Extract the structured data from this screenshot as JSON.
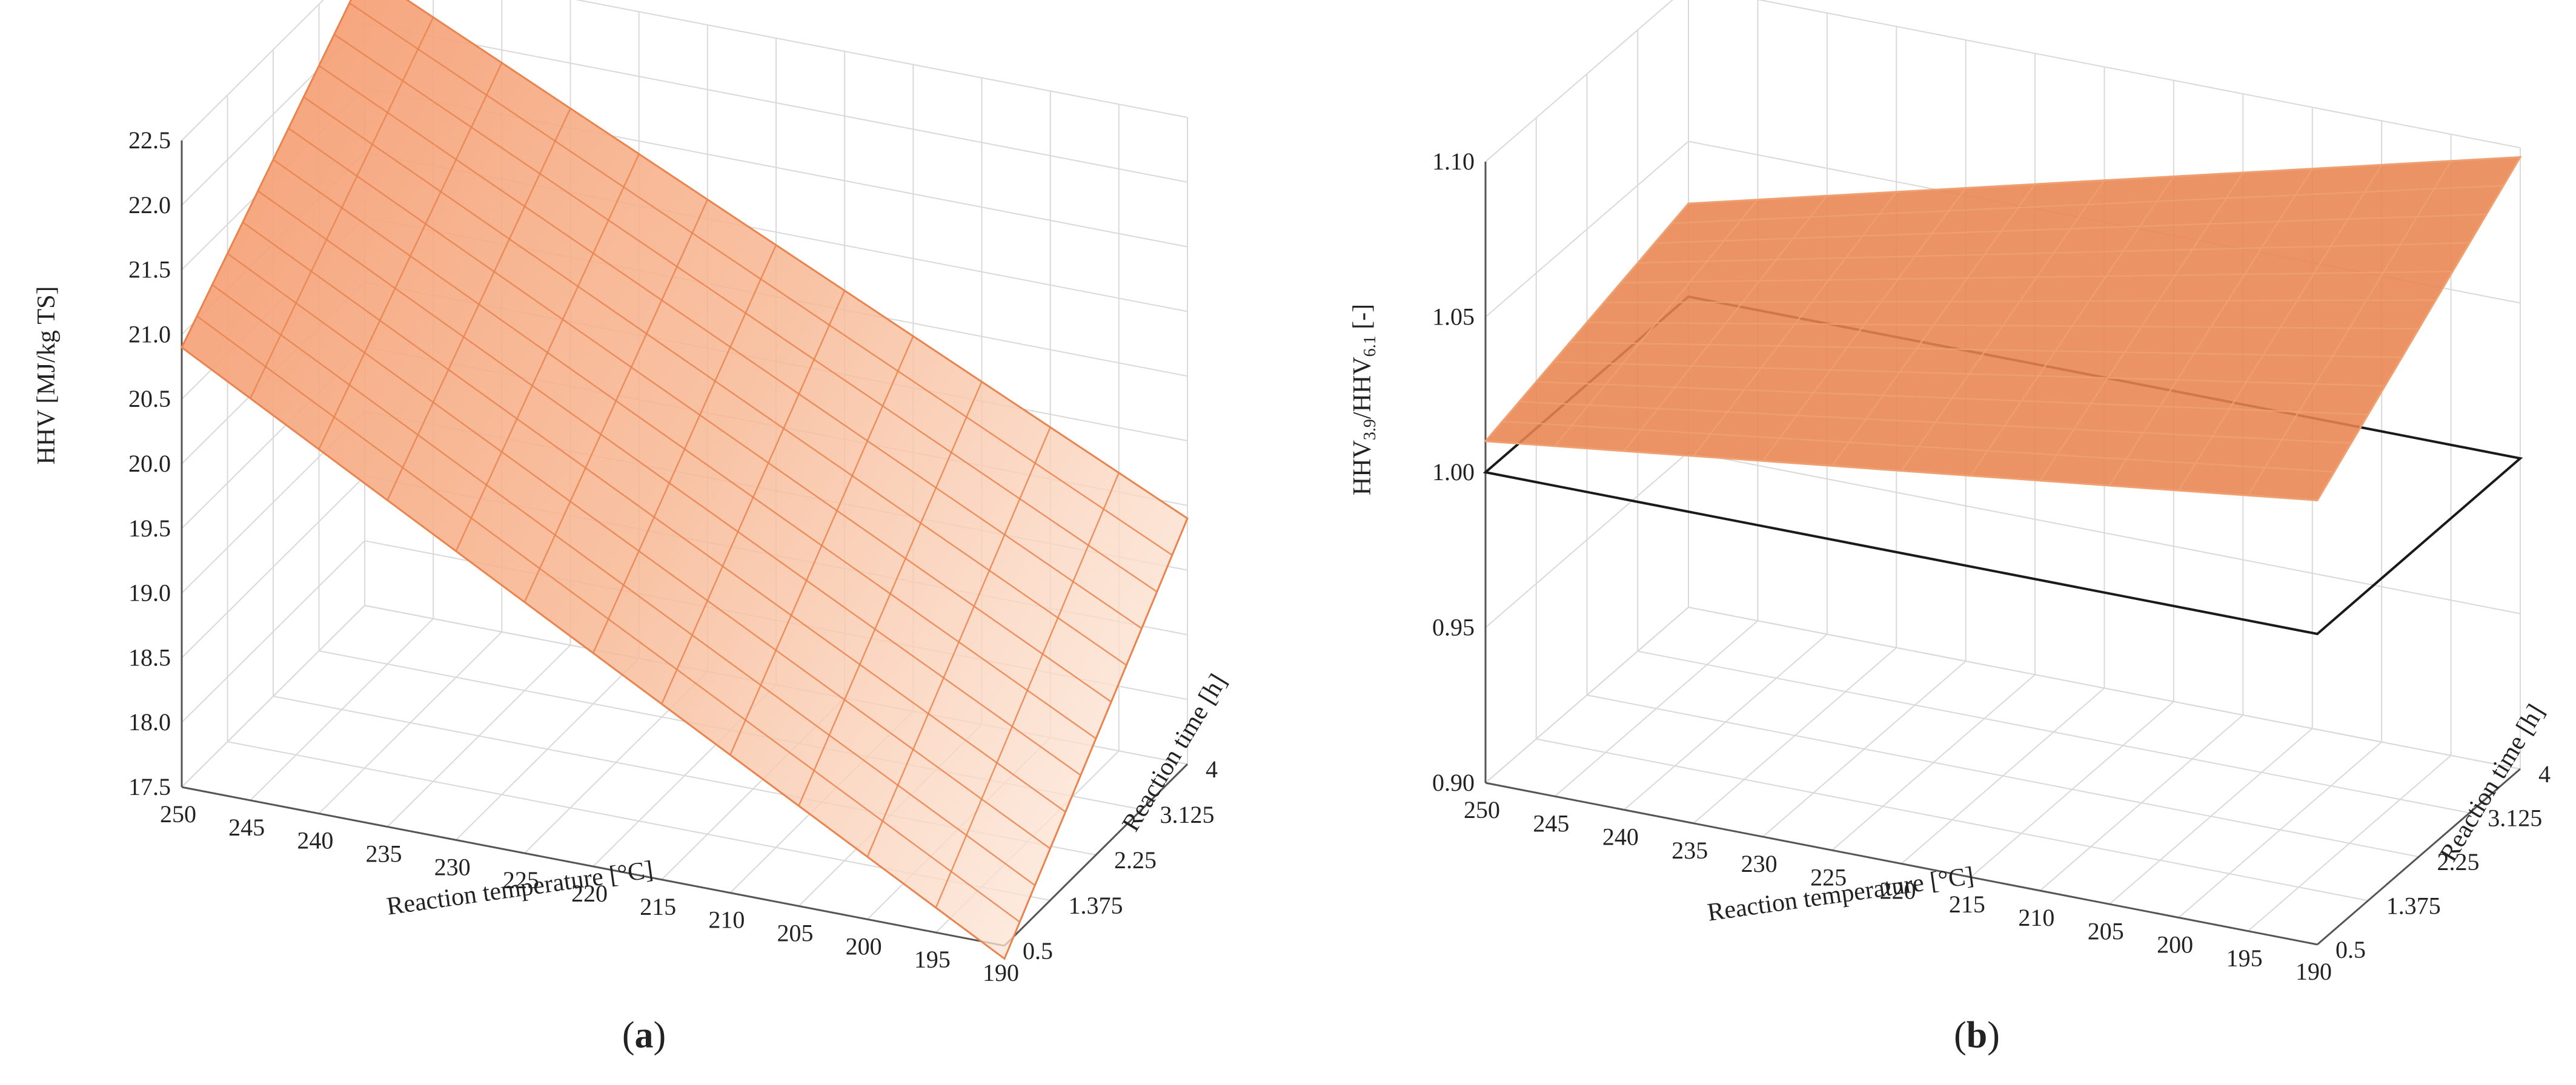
{
  "panels": [
    {
      "label": "a",
      "chart_data": {
        "type": "surface",
        "z_label": "HHV [MJ/kg TS]",
        "x_label": "Reaction temperature [°C]",
        "y_label": "Reaction time [h]",
        "x_ticks": [
          "250",
          "245",
          "240",
          "235",
          "230",
          "225",
          "220",
          "215",
          "210",
          "205",
          "200",
          "195",
          "190"
        ],
        "y_ticks": [
          "0.5",
          "1.375",
          "2.25",
          "3.125",
          "4"
        ],
        "z_ticks": [
          "17.5",
          "18.0",
          "18.5",
          "19.0",
          "19.5",
          "20.0",
          "20.5",
          "21.0",
          "21.5",
          "22.0",
          "22.5"
        ],
        "xlim": [
          190,
          250
        ],
        "ylim": [
          0.5,
          4
        ],
        "zlim": [
          17.5,
          22.5
        ],
        "grid": true,
        "surface_color": "#f4a27a",
        "surface_mesh_color": "#e9844f",
        "corner_values": [
          {
            "x": 250,
            "y": 0.5,
            "z": 20.9
          },
          {
            "x": 250,
            "y": 4,
            "z": 22.4
          },
          {
            "x": 190,
            "y": 0.5,
            "z": 17.4
          },
          {
            "x": 190,
            "y": 4,
            "z": 19.4
          }
        ]
      }
    },
    {
      "label": "b",
      "chart_data": {
        "type": "surface",
        "z_label_main": "HHV",
        "z_label_sub1": "3.9",
        "z_label_mid": "/HHV",
        "z_label_sub2": "6.1",
        "z_label_tail": " [-]",
        "x_label": "Reaction temperature [°C]",
        "y_label": "Reaction time [h]",
        "x_ticks": [
          "250",
          "245",
          "240",
          "235",
          "230",
          "225",
          "220",
          "215",
          "210",
          "205",
          "200",
          "195",
          "190"
        ],
        "y_ticks": [
          "0.5",
          "1.375",
          "2.25",
          "3.125",
          "4"
        ],
        "z_ticks": [
          "0.90",
          "0.95",
          "1.00",
          "1.05",
          "1.10"
        ],
        "xlim": [
          190,
          250
        ],
        "ylim": [
          0.5,
          4
        ],
        "zlim": [
          0.9,
          1.1
        ],
        "grid": true,
        "reference_plane_z": 1.0,
        "surface_color": "#e8844f",
        "surface_mesh_color": "#f0a070",
        "corner_values": [
          {
            "x": 250,
            "y": 0.5,
            "z": 1.01
          },
          {
            "x": 250,
            "y": 4,
            "z": 1.03
          },
          {
            "x": 190,
            "y": 0.5,
            "z": 1.043
          },
          {
            "x": 190,
            "y": 4,
            "z": 1.097
          }
        ]
      }
    }
  ]
}
